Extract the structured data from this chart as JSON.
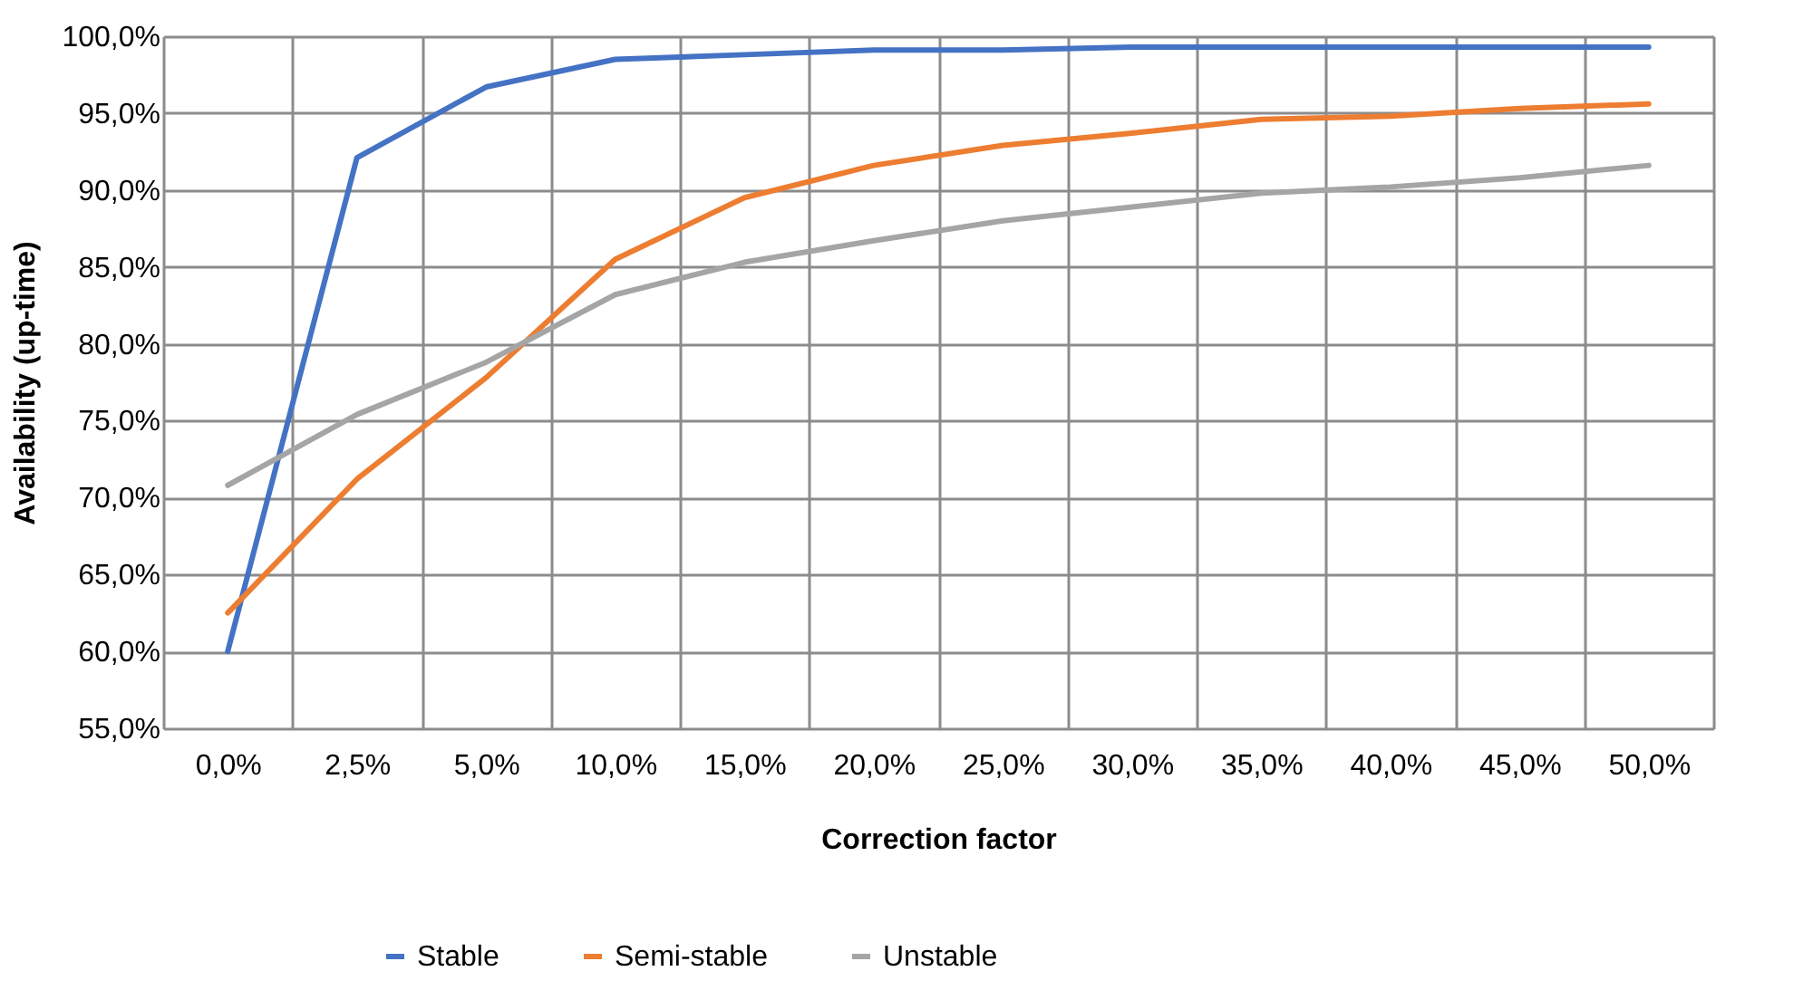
{
  "chart_data": {
    "type": "line",
    "xlabel": "Correction factor",
    "ylabel": "Availability  (up-time)",
    "categories": [
      "0,0%",
      "2,5%",
      "5,0%",
      "10,0%",
      "15,0%",
      "20,0%",
      "25,0%",
      "30,0%",
      "35,0%",
      "40,0%",
      "45,0%",
      "50,0%"
    ],
    "series": [
      {
        "name": "Stable",
        "color": "#4472c4",
        "values": [
          60.0,
          92.1,
          96.7,
          98.5,
          98.8,
          99.1,
          99.1,
          99.3,
          99.3,
          99.3,
          99.3,
          99.3
        ]
      },
      {
        "name": "Semi-stable",
        "color": "#ed7d31",
        "values": [
          62.5,
          71.2,
          77.8,
          85.5,
          89.5,
          91.6,
          92.9,
          93.7,
          94.6,
          94.8,
          95.3,
          95.6
        ]
      },
      {
        "name": "Unstable",
        "color": "#a5a5a5",
        "values": [
          70.8,
          75.4,
          78.8,
          83.2,
          85.3,
          86.7,
          88.0,
          88.9,
          89.8,
          90.2,
          90.8,
          91.6
        ]
      }
    ],
    "ylim": [
      55,
      100
    ],
    "yticks": [
      {
        "value": 55,
        "label": "55,0%"
      },
      {
        "value": 60,
        "label": "60,0%"
      },
      {
        "value": 65,
        "label": "65,0%"
      },
      {
        "value": 70,
        "label": "70,0%"
      },
      {
        "value": 75,
        "label": "75,0%"
      },
      {
        "value": 80,
        "label": "80,0%"
      },
      {
        "value": 85,
        "label": "85,0%"
      },
      {
        "value": 90,
        "label": "90,0%"
      },
      {
        "value": 95,
        "label": "95,0%"
      },
      {
        "value": 100,
        "label": "100,0%"
      }
    ],
    "grid": true,
    "legend": "bottom",
    "marker": "none",
    "line_style": "solid"
  }
}
